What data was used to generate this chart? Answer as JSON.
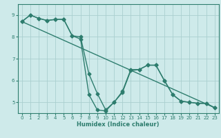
{
  "xlabel": "Humidex (Indice chaleur)",
  "xlim": [
    -0.5,
    23.5
  ],
  "ylim": [
    4.5,
    9.5
  ],
  "yticks": [
    5,
    6,
    7,
    8,
    9
  ],
  "xticks": [
    0,
    1,
    2,
    3,
    4,
    5,
    6,
    7,
    8,
    9,
    10,
    11,
    12,
    13,
    14,
    15,
    16,
    17,
    18,
    19,
    20,
    21,
    22,
    23
  ],
  "background_color": "#ceeaea",
  "line_color": "#2e7d6e",
  "grid_color": "#aacfcf",
  "line1_x": [
    0,
    1,
    2,
    3,
    4,
    5,
    6,
    7,
    8,
    9,
    10,
    11,
    12,
    13,
    14,
    15,
    16,
    17,
    18,
    19,
    20,
    21,
    22,
    23
  ],
  "line1_y": [
    8.7,
    9.0,
    8.85,
    8.75,
    8.8,
    8.8,
    8.05,
    8.0,
    6.3,
    5.4,
    4.65,
    5.0,
    5.5,
    6.5,
    6.5,
    6.7,
    6.7,
    6.0,
    5.35,
    5.05,
    5.0,
    4.95,
    4.95,
    4.75
  ],
  "line2_x": [
    0,
    1,
    2,
    3,
    4,
    5,
    6,
    7,
    8,
    9,
    10,
    11,
    12,
    13,
    14,
    15,
    16,
    17,
    18,
    19,
    20,
    21,
    22,
    23
  ],
  "line2_y": [
    8.7,
    9.0,
    8.85,
    8.75,
    8.8,
    8.8,
    8.05,
    7.9,
    5.35,
    4.65,
    4.6,
    5.0,
    5.45,
    6.45,
    6.5,
    6.7,
    6.7,
    6.0,
    5.35,
    5.05,
    5.0,
    4.95,
    4.95,
    4.75
  ],
  "line3_x": [
    0,
    23
  ],
  "line3_y": [
    8.7,
    4.75
  ],
  "marker": "D",
  "marker_size": 2.5,
  "linewidth": 1.0
}
